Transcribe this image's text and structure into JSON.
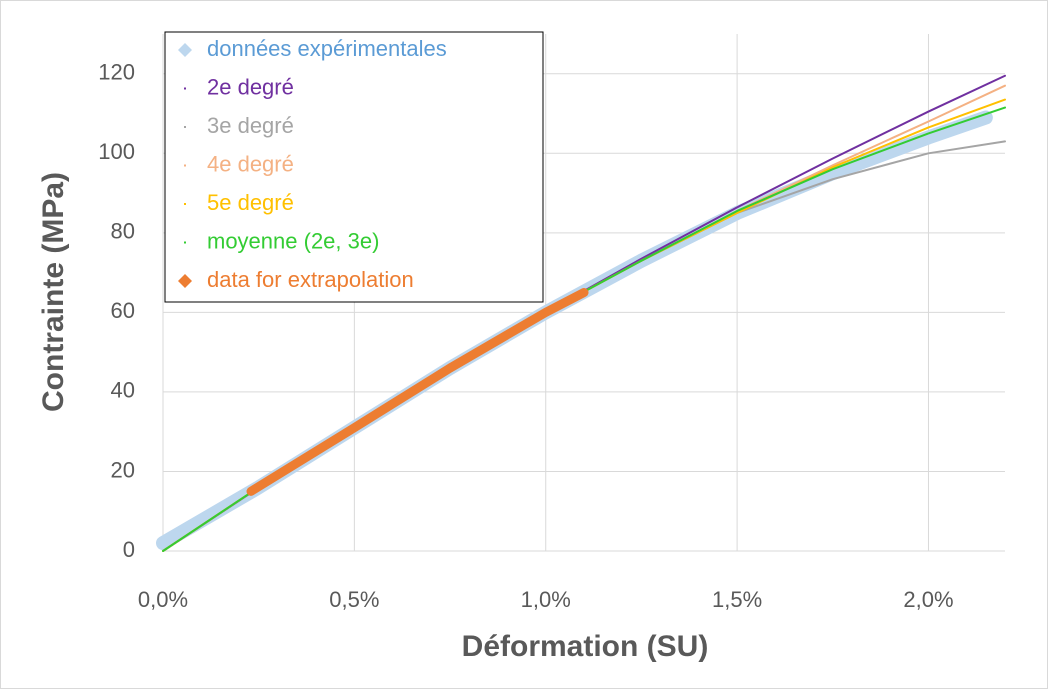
{
  "chart_data": {
    "type": "line",
    "xlabel": "Déformation (SU)",
    "ylabel": "Contrainte (MPa)",
    "xlim": [
      0,
      2.2
    ],
    "ylim": [
      0,
      130
    ],
    "xticks": [
      {
        "value": 0,
        "label": "0,0%"
      },
      {
        "value": 0.5,
        "label": "0,5%"
      },
      {
        "value": 1.0,
        "label": "1,0%"
      },
      {
        "value": 1.5,
        "label": "1,5%"
      },
      {
        "value": 2.0,
        "label": "2,0%"
      }
    ],
    "yticks": [
      0,
      20,
      40,
      60,
      80,
      100,
      120
    ],
    "grid": true,
    "legend": "upper left",
    "series": [
      {
        "name": "données expérimentales",
        "color": "#bdd7ee",
        "marker": "diamond",
        "x": [
          0,
          0.25,
          0.5,
          0.75,
          1.0,
          1.25,
          1.5,
          1.75,
          2.0,
          2.15
        ],
        "values": [
          2,
          16,
          31,
          46,
          60,
          73,
          85,
          95,
          104,
          109
        ]
      },
      {
        "name": "2e degré",
        "color": "#7030a0",
        "x": [
          0,
          0.25,
          0.5,
          0.75,
          1.0,
          1.25,
          1.5,
          1.75,
          2.0,
          2.2
        ],
        "values": [
          0,
          15.9,
          31.2,
          45.9,
          60,
          73.5,
          86.4,
          98.7,
          110.5,
          119.5
        ]
      },
      {
        "name": "3e degré",
        "color": "#a5a5a5",
        "x": [
          0,
          0.25,
          0.5,
          0.75,
          1.0,
          1.25,
          1.5,
          1.75,
          2.0,
          2.2
        ],
        "values": [
          0,
          16,
          31,
          46,
          60,
          73,
          85,
          93.5,
          100,
          103
        ]
      },
      {
        "name": "4e degré",
        "color": "#f4b183",
        "x": [
          0,
          0.25,
          0.5,
          0.75,
          1.0,
          1.25,
          1.5,
          1.75,
          2.0,
          2.2
        ],
        "values": [
          0,
          16,
          31,
          46,
          60,
          73,
          85.5,
          97,
          108,
          117
        ]
      },
      {
        "name": "5e degré",
        "color": "#ffc000",
        "x": [
          0,
          0.25,
          0.5,
          0.75,
          1.0,
          1.25,
          1.5,
          1.75,
          2.0,
          2.2
        ],
        "values": [
          0,
          16,
          31,
          46,
          60,
          73,
          85,
          96.5,
          106.5,
          113.5
        ]
      },
      {
        "name": "moyenne (2e, 3e)",
        "color": "#33cc33",
        "x": [
          0,
          0.25,
          0.5,
          0.75,
          1.0,
          1.25,
          1.5,
          1.75,
          2.0,
          2.2
        ],
        "values": [
          0,
          16,
          31,
          46,
          60,
          73,
          85.5,
          96,
          105,
          111.5
        ]
      },
      {
        "name": "data for extrapolation",
        "color": "#ed7d31",
        "marker": "diamond",
        "x": [
          0.23,
          0.5,
          0.75,
          1.0,
          1.1
        ],
        "values": [
          15,
          31,
          46,
          60,
          65
        ]
      }
    ]
  }
}
